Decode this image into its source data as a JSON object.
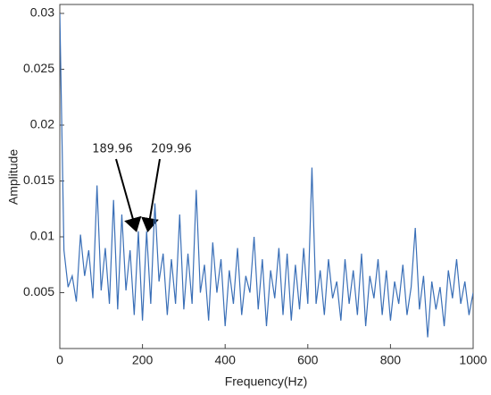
{
  "chart_data": {
    "type": "line",
    "x_label": "Frequency(Hz)",
    "y_label": "Amplitude",
    "annotations": [
      "189.96",
      "209.96"
    ],
    "xlim": [
      0,
      1000
    ],
    "xticks": [
      0,
      200,
      400,
      600,
      800,
      1000
    ],
    "ylim": [
      0,
      0.03
    ],
    "yticks": [
      0.005,
      0.01,
      0.015,
      0.02,
      0.025,
      0.03
    ],
    "grid": false,
    "series": [
      {
        "name": "Amplitude",
        "color": "#3a6fb7",
        "x": [
          0,
          10,
          20,
          30,
          40,
          50,
          60,
          70,
          80,
          90,
          100,
          110,
          120,
          130,
          140,
          150,
          160,
          170,
          180,
          190,
          200,
          210,
          220,
          230,
          240,
          250,
          260,
          270,
          280,
          290,
          300,
          310,
          320,
          330,
          340,
          350,
          360,
          370,
          380,
          390,
          400,
          410,
          420,
          430,
          440,
          450,
          460,
          470,
          480,
          490,
          500,
          510,
          520,
          530,
          540,
          550,
          560,
          570,
          580,
          590,
          600,
          610,
          620,
          630,
          640,
          650,
          660,
          670,
          680,
          690,
          700,
          710,
          720,
          730,
          740,
          750,
          760,
          770,
          780,
          790,
          800,
          810,
          820,
          830,
          840,
          850,
          860,
          870,
          880,
          890,
          900,
          910,
          920,
          930,
          940,
          950,
          960,
          970,
          980,
          990,
          1000
        ],
        "values": [
          0.03,
          0.0088,
          0.0055,
          0.0065,
          0.0042,
          0.0102,
          0.0065,
          0.0088,
          0.0045,
          0.0146,
          0.0052,
          0.009,
          0.004,
          0.0133,
          0.0035,
          0.012,
          0.0052,
          0.0088,
          0.003,
          0.0105,
          0.0025,
          0.0105,
          0.004,
          0.013,
          0.006,
          0.0085,
          0.003,
          0.008,
          0.004,
          0.012,
          0.0035,
          0.0085,
          0.004,
          0.0142,
          0.005,
          0.0075,
          0.0025,
          0.0095,
          0.005,
          0.008,
          0.002,
          0.007,
          0.004,
          0.009,
          0.003,
          0.0065,
          0.005,
          0.01,
          0.0035,
          0.008,
          0.002,
          0.007,
          0.0045,
          0.009,
          0.003,
          0.0085,
          0.0025,
          0.0075,
          0.0035,
          0.009,
          0.004,
          0.0162,
          0.004,
          0.007,
          0.003,
          0.008,
          0.0045,
          0.006,
          0.0025,
          0.008,
          0.004,
          0.007,
          0.003,
          0.0085,
          0.002,
          0.0065,
          0.0045,
          0.008,
          0.003,
          0.007,
          0.0025,
          0.006,
          0.004,
          0.0075,
          0.003,
          0.0055,
          0.0108,
          0.0035,
          0.0065,
          0.001,
          0.006,
          0.0035,
          0.0055,
          0.002,
          0.007,
          0.0045,
          0.008,
          0.004,
          0.006,
          0.003,
          0.005
        ]
      }
    ]
  }
}
